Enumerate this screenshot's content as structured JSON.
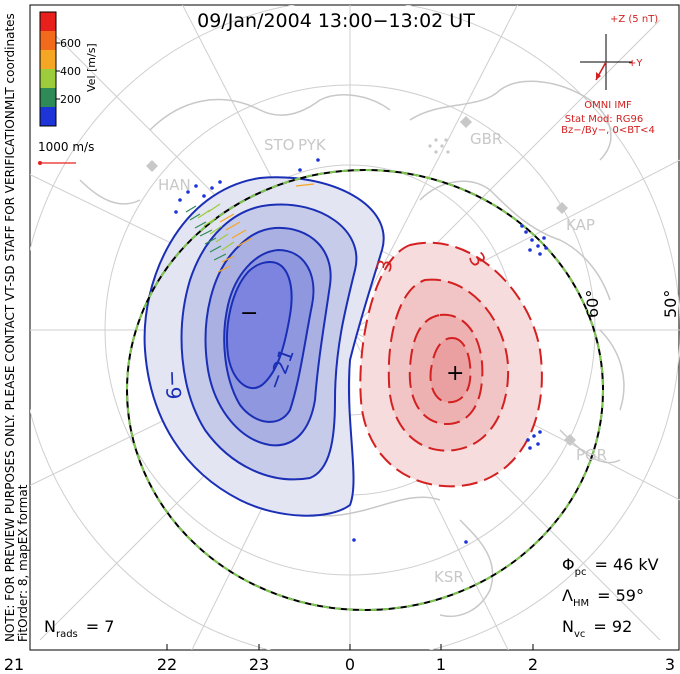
{
  "title": "09/Jan/2004  13:00−13:02  UT",
  "side_note_line1": "NOTE: FOR PREVIEW PURPOSES ONLY. PLEASE CONTACT VT-SD STAFF FOR VERIFICATION.",
  "side_note_line2": "FitOrder: 8,  mapEX format",
  "mlt_label": "MLT coordinates",
  "colorbar": {
    "label": "Vel [m/s]",
    "ticks": [
      "600",
      "400",
      "200"
    ],
    "colors": [
      "#e8201c",
      "#f26b1c",
      "#f5a623",
      "#9ccc3c",
      "#2e8b57",
      "#1d35d8"
    ]
  },
  "vector_scale_label": "1000 m/s",
  "imf": {
    "z_label": "+Z (5 nT)",
    "y_label": "+Y",
    "title": "OMNI IMF",
    "model_line1": "Stat Mod: RG96",
    "model_line2": "Bz−/By−, 0<BT<4"
  },
  "stations": [
    "STO",
    "PYK",
    "GBR",
    "HAN",
    "KAP",
    "PGR",
    "KSR"
  ],
  "latitude_labels": [
    "60°",
    "50°"
  ],
  "contour_labels": {
    "neg": [
      "−9",
      "−21",
      "−"
    ],
    "pos": [
      "3",
      "3",
      "+"
    ]
  },
  "stats": {
    "phi_symbol": "Φ",
    "phi_sub": "pc",
    "phi_value": "= 46 kV",
    "lambda_symbol": "Λ",
    "lambda_sub": "HM",
    "lambda_value": "= 59°",
    "nvc_symbol": "N",
    "nvc_sub": "vc",
    "nvc_value": "= 92",
    "nrads_symbol": "N",
    "nrads_sub": "rads",
    "nrads_value": "= 7"
  },
  "mlt_axis": [
    "21",
    "22",
    "23",
    "0",
    "1",
    "2",
    "3"
  ],
  "colors": {
    "negative_cell": "#1a2fb5",
    "positive_cell": "#d42020",
    "coastline": "#c8c8c8",
    "hmb_dash": "#7ec850"
  }
}
